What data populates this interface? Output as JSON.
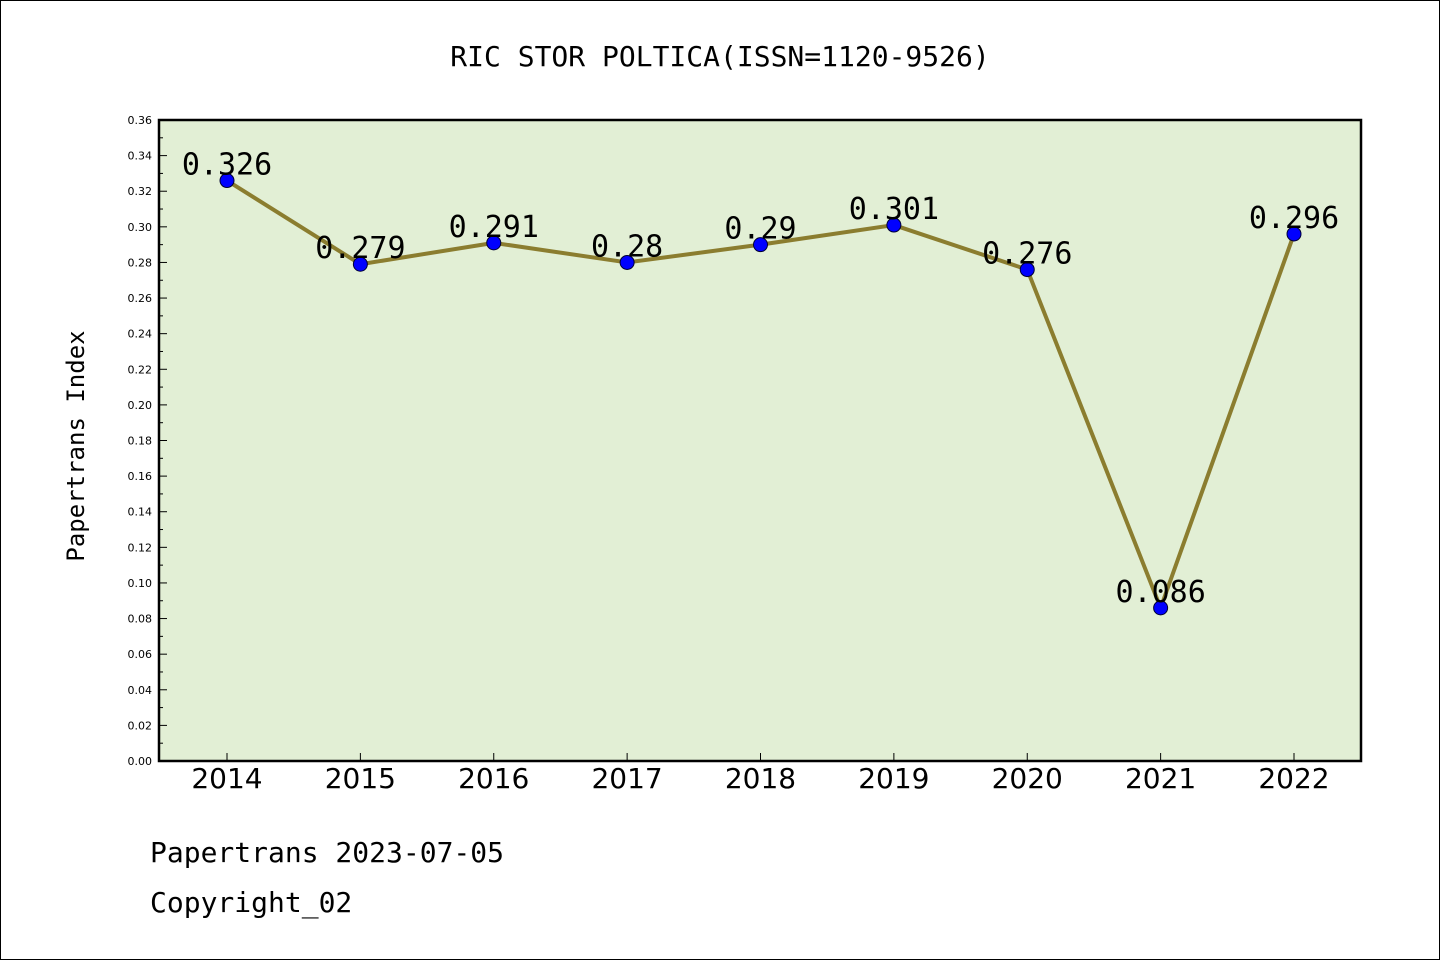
{
  "chart_data": {
    "type": "line",
    "title": "RIC STOR POLTICA(ISSN=1120-9526)",
    "xlabel": "",
    "ylabel": "Papertrans Index",
    "categories": [
      "2014",
      "2015",
      "2016",
      "2017",
      "2018",
      "2019",
      "2020",
      "2021",
      "2022"
    ],
    "series": [
      {
        "values": [
          0.326,
          0.279,
          0.291,
          0.28,
          0.29,
          0.301,
          0.276,
          0.086,
          0.296
        ],
        "data_labels": [
          "0.326",
          "0.279",
          "0.291",
          "0.28",
          "0.29",
          "0.301",
          "0.276",
          "0.086",
          "0.296"
        ]
      }
    ],
    "ylim": [
      0,
      0.36
    ],
    "yticks": [
      "0.00",
      "0.02",
      "0.04",
      "0.06",
      "0.08",
      "0.10",
      "0.12",
      "0.14",
      "0.16",
      "0.18",
      "0.20",
      "0.22",
      "0.24",
      "0.26",
      "0.28",
      "0.30",
      "0.32",
      "0.34",
      "0.36"
    ],
    "grid": false,
    "colors": {
      "line": "#8b7d2f",
      "marker": "#0000ff",
      "plot_background": "#e2efd5"
    }
  },
  "footer": {
    "date_line": "Papertrans 2023-07-05",
    "copyright": "Copyright_02"
  }
}
